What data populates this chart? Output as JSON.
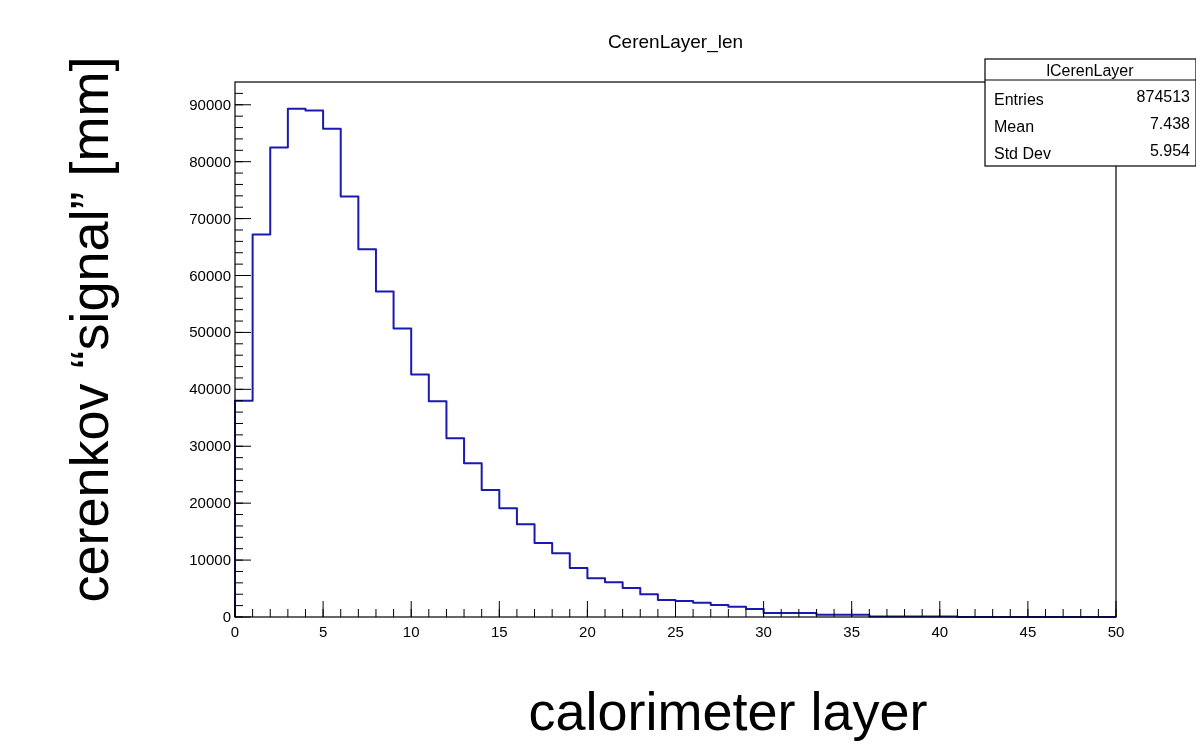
{
  "chart_data": {
    "type": "histogram",
    "title": "CerenLayer_len",
    "xlabel": "calorimeter layer",
    "ylabel": "cerenkov “signal” [mm]",
    "bins": [
      0,
      1,
      2,
      3,
      4,
      5,
      6,
      7,
      8,
      9,
      10,
      11,
      12,
      13,
      14,
      15,
      16,
      17,
      18,
      19,
      20,
      21,
      22,
      23,
      24,
      25,
      26,
      27,
      28,
      29,
      30,
      31,
      32,
      33,
      34,
      35,
      36,
      37,
      38,
      39,
      40,
      41,
      42,
      43,
      44,
      45,
      46,
      47,
      48,
      49,
      50
    ],
    "values": [
      38000,
      67200,
      82500,
      89300,
      89000,
      85800,
      73900,
      64600,
      57200,
      50700,
      42600,
      37900,
      31400,
      27000,
      22300,
      19100,
      16300,
      13000,
      11200,
      8600,
      6800,
      6100,
      5100,
      4000,
      3000,
      2800,
      2500,
      2100,
      1800,
      1400,
      700,
      700,
      700,
      400,
      400,
      400,
      100,
      100,
      100,
      100,
      100,
      0,
      0,
      0,
      0,
      0,
      0,
      0,
      0,
      0
    ],
    "color": "#1a1ab0",
    "xlim": [
      0,
      50
    ],
    "xticks": [
      0,
      5,
      10,
      15,
      20,
      25,
      30,
      35,
      40,
      45,
      50
    ],
    "ylim": [
      0,
      94000
    ],
    "yticks": [
      0,
      10000,
      20000,
      30000,
      40000,
      50000,
      60000,
      70000,
      80000,
      90000
    ],
    "annotations": [
      "lCerenLayer",
      "Entries",
      "874513",
      "Mean",
      "7.438",
      "Std Dev",
      "5.954"
    ],
    "grid": false
  }
}
